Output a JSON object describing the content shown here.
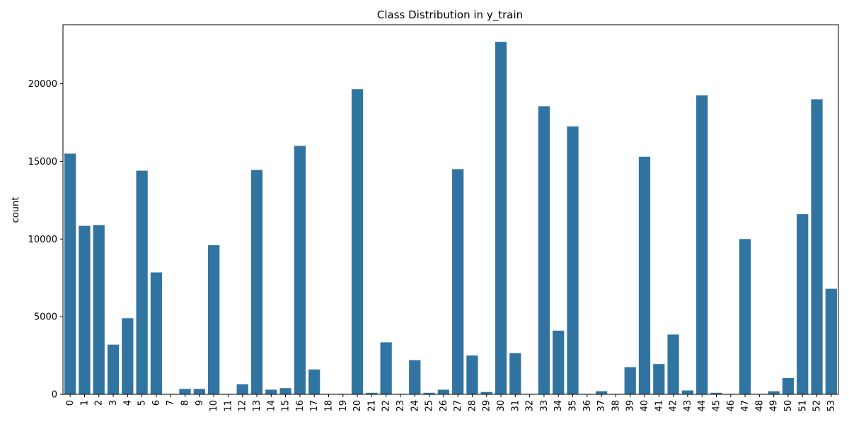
{
  "chart_data": {
    "type": "bar",
    "title": "Class Distribution in y_train",
    "xlabel": "",
    "ylabel": "count",
    "ylim": [
      0,
      23800
    ],
    "yticks": [
      0,
      5000,
      10000,
      15000,
      20000
    ],
    "grid": false,
    "bar_color": "#3274a1",
    "categories": [
      "0",
      "1",
      "2",
      "3",
      "4",
      "5",
      "6",
      "7",
      "8",
      "9",
      "10",
      "11",
      "12",
      "13",
      "14",
      "15",
      "16",
      "17",
      "18",
      "19",
      "20",
      "21",
      "22",
      "23",
      "24",
      "25",
      "26",
      "27",
      "28",
      "29",
      "30",
      "31",
      "32",
      "33",
      "34",
      "35",
      "36",
      "37",
      "38",
      "39",
      "40",
      "41",
      "42",
      "43",
      "44",
      "45",
      "46",
      "47",
      "48",
      "49",
      "50",
      "51",
      "52",
      "53"
    ],
    "values": [
      15500,
      10850,
      10900,
      3200,
      4900,
      14400,
      7850,
      30,
      350,
      350,
      9600,
      30,
      650,
      14450,
      300,
      400,
      16000,
      1600,
      30,
      30,
      19650,
      100,
      3350,
      30,
      2200,
      100,
      300,
      14500,
      2500,
      150,
      22700,
      2650,
      30,
      18550,
      4100,
      17250,
      30,
      200,
      30,
      1750,
      15300,
      1950,
      3850,
      250,
      19250,
      100,
      30,
      10000,
      30,
      200,
      1050,
      11600,
      19000,
      6800
    ]
  }
}
